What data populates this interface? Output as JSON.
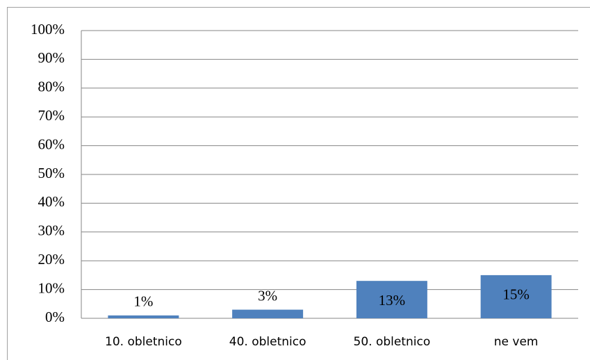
{
  "chart_data": {
    "type": "bar",
    "categories": [
      "10. obletnico",
      "40. obletnico",
      "50. obletnico",
      "ne vem"
    ],
    "values": [
      1,
      3,
      13,
      15
    ],
    "value_labels": [
      "1%",
      "3%",
      "13%",
      "15%"
    ],
    "color": "#4f81bd",
    "ylim": [
      0,
      100
    ],
    "yticks": [
      {
        "value": 0,
        "label": "0%"
      },
      {
        "value": 10,
        "label": "10%"
      },
      {
        "value": 20,
        "label": "20%"
      },
      {
        "value": 30,
        "label": "30%"
      },
      {
        "value": 40,
        "label": "40%"
      },
      {
        "value": 50,
        "label": "50%"
      },
      {
        "value": 60,
        "label": "60%"
      },
      {
        "value": 70,
        "label": "70%"
      },
      {
        "value": 80,
        "label": "80%"
      },
      {
        "value": 90,
        "label": "90%"
      },
      {
        "value": 100,
        "label": "100%"
      }
    ],
    "grid": true
  }
}
